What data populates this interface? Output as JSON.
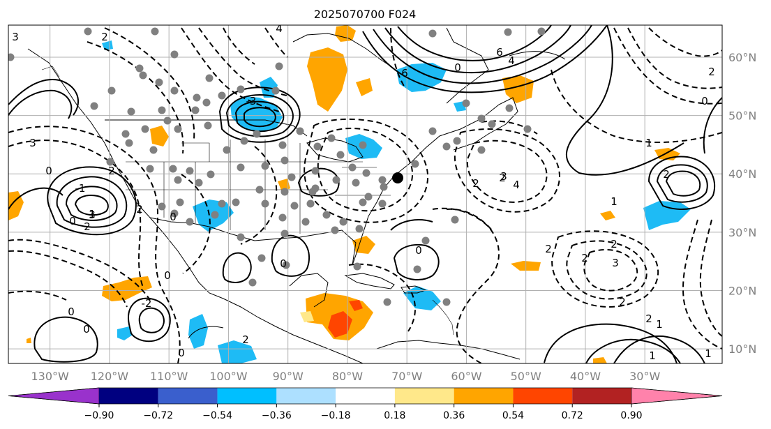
{
  "map": {
    "title": "2025070700 F024",
    "lon_labels": [
      "130°W",
      "120°W",
      "110°W",
      "100°W",
      "90°W",
      "80°W",
      "70°W",
      "60°W",
      "50°W",
      "40°W",
      "30°W"
    ],
    "lat_labels": [
      "60°N",
      "50°N",
      "40°N",
      "30°N",
      "20°N",
      "10°N"
    ],
    "lon_range": [
      -137,
      -17
    ],
    "lat_range": [
      7.5,
      65.5
    ],
    "grid": true,
    "contour_labels": [
      "3",
      "2",
      "4",
      "6",
      "4",
      "0",
      "2",
      "3",
      "0",
      "2",
      "1",
      "0",
      "2",
      "2",
      "-1",
      "-3",
      "0",
      "6",
      "4",
      "3",
      "2",
      "0",
      "1",
      "2",
      "3",
      "2",
      "2",
      "2",
      "2",
      "1",
      "3",
      "2",
      "1",
      "1",
      "0",
      "2",
      "0",
      "0",
      "-2",
      "0",
      "0",
      "0",
      "2",
      "1"
    ],
    "colors": {
      "positive_1": "#FFE88A",
      "positive_2": "#FFA500",
      "positive_3": "#FF4500",
      "negative_2": "#1EBBF5",
      "station_dot": "#808080",
      "grid": "#b0b0b0"
    }
  },
  "colorbar": {
    "labels": [
      "−0.90",
      "−0.72",
      "−0.54",
      "−0.36",
      "−0.18",
      "0.18",
      "0.36",
      "0.54",
      "0.72",
      "0.90"
    ],
    "colors": [
      "#9932CC",
      "#000080",
      "#3A5FCD",
      "#00BFFF",
      "#ADE0FF",
      "#FFFFFF",
      "#FFE88A",
      "#FFA500",
      "#FF4500",
      "#B22222",
      "#FF82AB"
    ],
    "extend": "both"
  }
}
